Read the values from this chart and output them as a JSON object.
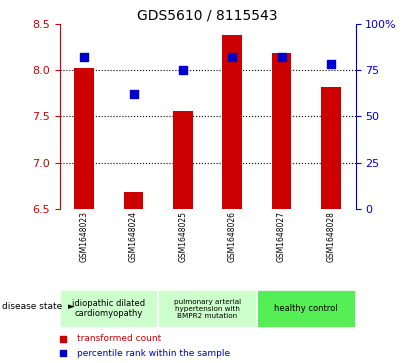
{
  "title": "GDS5610 / 8115543",
  "samples": [
    "GSM1648023",
    "GSM1648024",
    "GSM1648025",
    "GSM1648026",
    "GSM1648027",
    "GSM1648028"
  ],
  "red_values": [
    8.02,
    6.68,
    7.56,
    8.38,
    8.18,
    7.82
  ],
  "blue_values": [
    82,
    62,
    75,
    82,
    82,
    78
  ],
  "ylim_left": [
    6.5,
    8.5
  ],
  "ylim_right": [
    0,
    100
  ],
  "yticks_left": [
    6.5,
    7.0,
    7.5,
    8.0,
    8.5
  ],
  "yticks_right": [
    0,
    25,
    50,
    75,
    100
  ],
  "ytick_labels_right": [
    "0",
    "25",
    "50",
    "75",
    "100%"
  ],
  "bar_color": "#cc0000",
  "dot_color": "#0000cc",
  "bg_color": "#ffffff",
  "left_axis_color": "#cc0000",
  "right_axis_color": "#0000cc",
  "legend_red": "transformed count",
  "legend_blue": "percentile rank within the sample",
  "disease_state_label": "disease state",
  "bar_bottom": 6.5,
  "dot_size": 28,
  "grid_lines": [
    7.0,
    7.5,
    8.0
  ],
  "group_configs": [
    {
      "start": 0,
      "end": 1,
      "color": "#ccffcc",
      "label": "idiopathic dilated\ncardiomyopathy"
    },
    {
      "start": 2,
      "end": 3,
      "color": "#ccffcc",
      "label": "pulmonary arterial\nhypertension with\nBMPR2 mutation"
    },
    {
      "start": 4,
      "end": 5,
      "color": "#55ee55",
      "label": "healthy control"
    }
  ]
}
